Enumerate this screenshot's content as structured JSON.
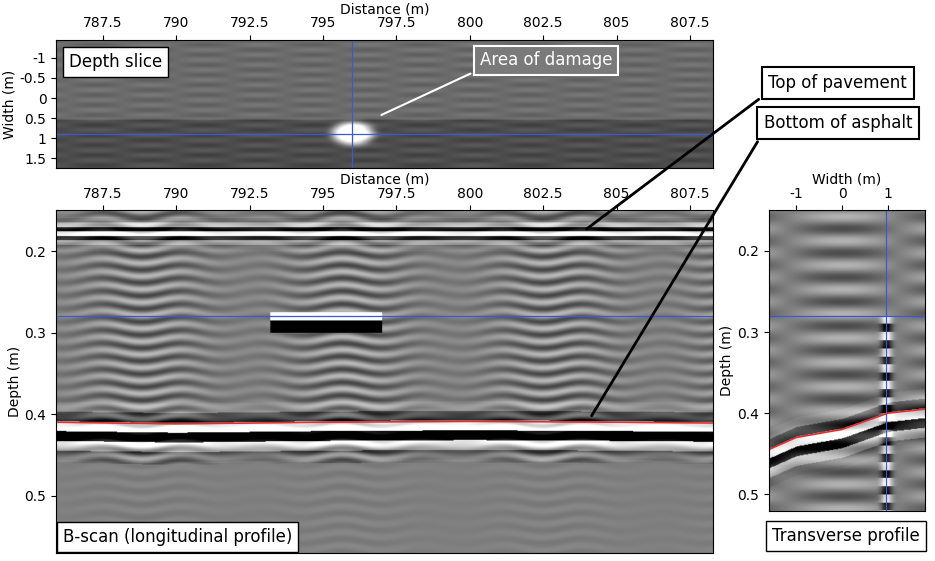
{
  "chart_data": [
    {
      "type": "image",
      "label": "Depth slice",
      "x_label": "Distance (m)",
      "y_label": "Width (m)",
      "xlim": [
        785.9,
        808.3
      ],
      "ylim": [
        1.75,
        -1.45
      ],
      "xticks": [
        787.5,
        790,
        792.5,
        795,
        797.5,
        800,
        802.5,
        805,
        807.5
      ],
      "yticks": [
        -1,
        -0.5,
        0,
        0.5,
        1,
        1.5
      ],
      "crosshair": {
        "x": 796,
        "y": 0.9
      },
      "annotations": [
        {
          "text": "Area of damage",
          "x": 796.9,
          "y": 0.45
        }
      ]
    },
    {
      "type": "image",
      "label": "B-scan (longitudinal profile)",
      "x_label": "Distance (m)",
      "y_label": "Depth (m)",
      "xlim": [
        785.9,
        808.3
      ],
      "ylim": [
        0.57,
        0.15
      ],
      "xticks": [
        787.5,
        790,
        792.5,
        795,
        797.5,
        800,
        802.5,
        805,
        807.5
      ],
      "yticks": [
        0.2,
        0.3,
        0.4,
        0.5
      ],
      "crosshair": {
        "y": 0.28
      },
      "anomaly": {
        "x": [
          793.2,
          797.0
        ],
        "y": 0.28
      },
      "interface": {
        "x": [
          785.9,
          790,
          795,
          800,
          805,
          808.3
        ],
        "y": [
          0.41,
          0.412,
          0.41,
          0.409,
          0.41,
          0.411
        ],
        "color": "#e03030"
      },
      "annotations": [
        {
          "text": "Top of pavement",
          "x": 803.9,
          "y": 0.175
        },
        {
          "text": "Bottom of asphalt",
          "x": 804.1,
          "y": 0.405
        }
      ]
    },
    {
      "type": "image",
      "label": "Transverse profile",
      "x_label": "Width (m)",
      "y_label": "Depth (m)",
      "xlim": [
        -1.6,
        1.8
      ],
      "ylim": [
        0.52,
        0.15
      ],
      "xticks": [
        -1,
        0,
        1
      ],
      "yticks": [
        0.2,
        0.3,
        0.4,
        0.5
      ],
      "crosshair": {
        "x": 0.95,
        "y": 0.28
      },
      "interface": {
        "x": [
          -1.6,
          -1,
          0,
          0.5,
          1,
          1.8
        ],
        "y": [
          0.445,
          0.43,
          0.42,
          0.41,
          0.4,
          0.395
        ],
        "color": "#e03030"
      }
    }
  ]
}
